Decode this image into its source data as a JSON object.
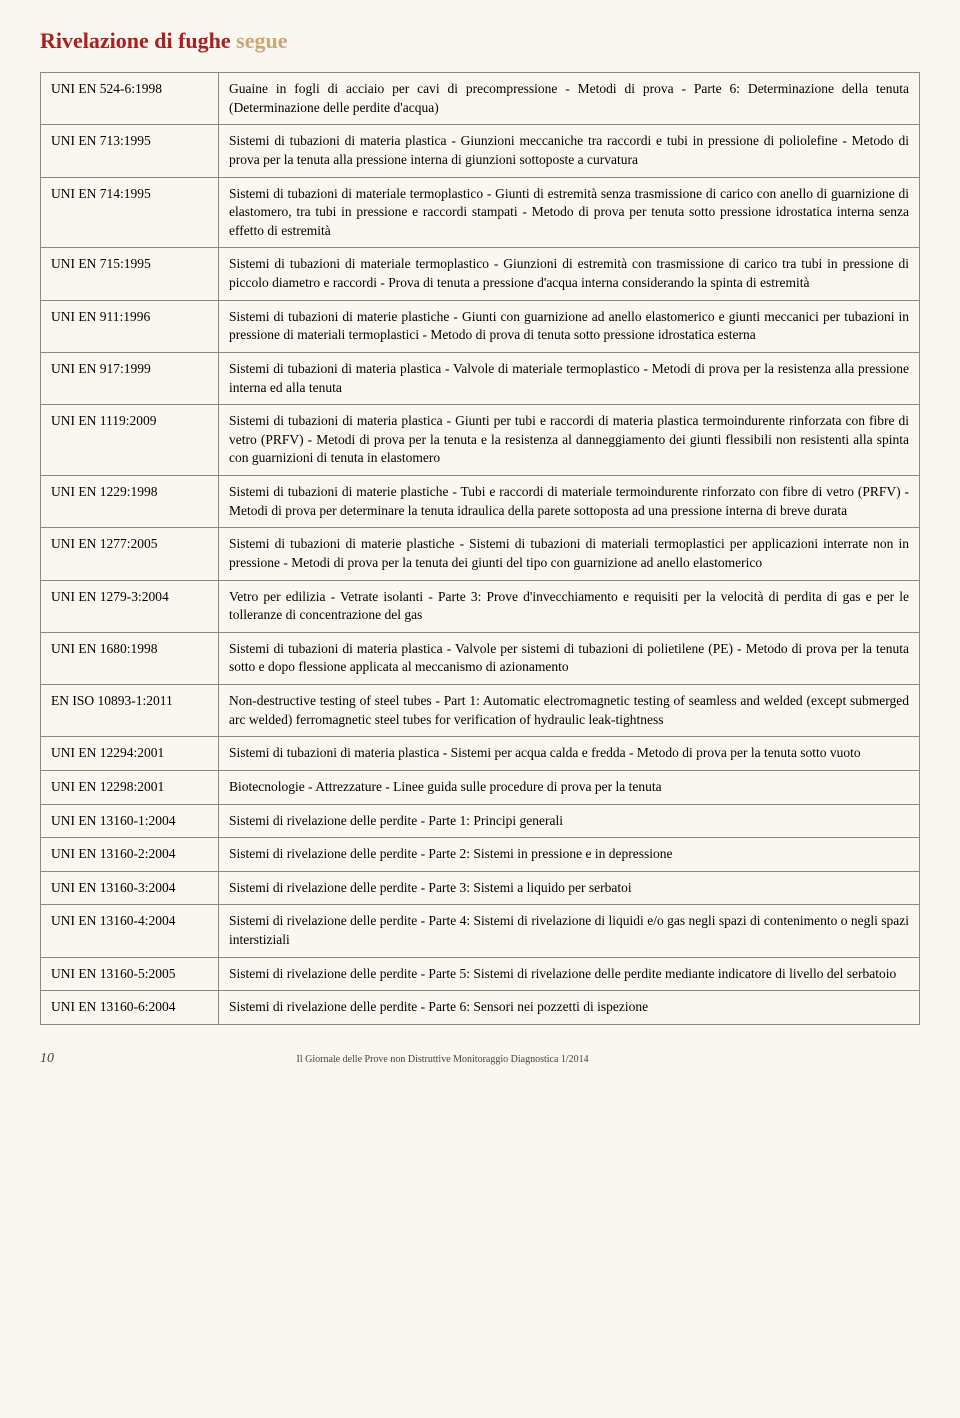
{
  "title": {
    "main": "Rivelazione di fughe",
    "suffix": "segue"
  },
  "rows": [
    {
      "code": "UNI EN 524-6:1998",
      "desc": "Guaine in fogli di acciaio per cavi di precompressione - Metodi di prova - Parte 6: Determinazione della tenuta (Determinazione delle perdite d'acqua)"
    },
    {
      "code": "UNI EN 713:1995",
      "desc": "Sistemi di tubazioni di materia plastica - Giunzioni meccaniche tra raccordi e tubi in pressione di poliolefine - Metodo di prova per la tenuta alla pressione interna di giunzioni sottoposte a curvatura"
    },
    {
      "code": "UNI EN 714:1995",
      "desc": "Sistemi di tubazioni di materiale termoplastico - Giunti di estremità senza trasmissione di carico con anello di guarnizione di elastomero, tra tubi in pressione e raccordi stampati - Metodo di prova per tenuta sotto pressione idrostatica interna senza effetto di estremità"
    },
    {
      "code": "UNI EN 715:1995",
      "desc": "Sistemi di tubazioni di materiale termoplastico - Giunzioni di estremità con trasmissione di carico tra tubi in pressione di piccolo diametro e raccordi - Prova di tenuta a pressione d'acqua interna considerando la spinta di estremità"
    },
    {
      "code": "UNI EN 911:1996",
      "desc": "Sistemi di tubazioni di materie plastiche - Giunti con guarnizione ad anello elastomerico e giunti meccanici per tubazioni in pressione di materiali termoplastici - Metodo di prova di tenuta sotto pressione idrostatica esterna"
    },
    {
      "code": "UNI EN 917:1999",
      "desc": "Sistemi di tubazioni di materia plastica - Valvole di materiale termoplastico - Metodi di prova per la resistenza alla pressione interna ed alla tenuta"
    },
    {
      "code": "UNI EN 1119:2009",
      "desc": "Sistemi di tubazioni di materia plastica - Giunti per tubi e raccordi di materia plastica termoindurente rinforzata con fibre di vetro (PRFV) - Metodi di prova per la tenuta e la resistenza al danneggiamento dei giunti flessibili non resistenti alla spinta con guarnizioni di tenuta in elastomero"
    },
    {
      "code": "UNI EN 1229:1998",
      "desc": "Sistemi di tubazioni di materie plastiche - Tubi e raccordi di materiale termoindurente rinforzato con fibre di vetro (PRFV) - Metodi di prova per determinare la tenuta idraulica della parete sottoposta ad una pressione interna di breve durata"
    },
    {
      "code": "UNI EN 1277:2005",
      "desc": "Sistemi di tubazioni di materie plastiche - Sistemi di tubazioni di materiali termoplastici per applicazioni interrate non in pressione - Metodi di prova per la tenuta dei giunti del tipo con guarnizione ad anello elastomerico"
    },
    {
      "code": "UNI EN 1279-3:2004",
      "desc": "Vetro per edilizia - Vetrate isolanti - Parte 3: Prove d'invecchiamento e requisiti per la velocità di perdita di gas e per le tolleranze di concentrazione del gas"
    },
    {
      "code": "UNI EN 1680:1998",
      "desc": "Sistemi di tubazioni di materia plastica - Valvole per sistemi di tubazioni di polietilene (PE) - Metodo di prova per la tenuta sotto e dopo flessione applicata al meccanismo di azionamento"
    },
    {
      "code": "EN ISO 10893-1:2011",
      "desc": "Non-destructive testing of steel tubes - Part 1: Automatic electromagnetic testing of seamless and welded (except submerged arc welded) ferromagnetic steel tubes for verification of hydraulic leak-tightness"
    },
    {
      "code": "UNI EN 12294:2001",
      "desc": "Sistemi di tubazioni di materia plastica - Sistemi per acqua calda e fredda - Metodo di prova per la tenuta sotto vuoto"
    },
    {
      "code": "UNI EN 12298:2001",
      "desc": "Biotecnologie - Attrezzature - Linee guida sulle procedure di prova per la tenuta"
    },
    {
      "code": "UNI EN 13160-1:2004",
      "desc": "Sistemi di rivelazione delle perdite - Parte 1: Principi generali"
    },
    {
      "code": "UNI EN 13160-2:2004",
      "desc": "Sistemi di rivelazione delle perdite - Parte 2: Sistemi in pressione e in depressione"
    },
    {
      "code": "UNI EN 13160-3:2004",
      "desc": "Sistemi di rivelazione delle perdite - Parte 3: Sistemi a liquido per serbatoi"
    },
    {
      "code": "UNI EN 13160-4:2004",
      "desc": "Sistemi di rivelazione delle perdite - Parte 4: Sistemi di rivelazione di liquidi e/o gas negli spazi di contenimento o negli spazi interstiziali"
    },
    {
      "code": "UNI EN 13160-5:2005",
      "desc": "Sistemi di rivelazione delle perdite - Parte 5: Sistemi di rivelazione delle perdite mediante indicatore di livello del serbatoio"
    },
    {
      "code": "UNI EN 13160-6:2004",
      "desc": "Sistemi di rivelazione delle perdite - Parte 6: Sensori nei pozzetti di ispezione"
    }
  ],
  "footer": {
    "page": "10",
    "text": "Il Giornale delle Prove non Distruttive Monitoraggio Diagnostica 1/2014"
  }
}
